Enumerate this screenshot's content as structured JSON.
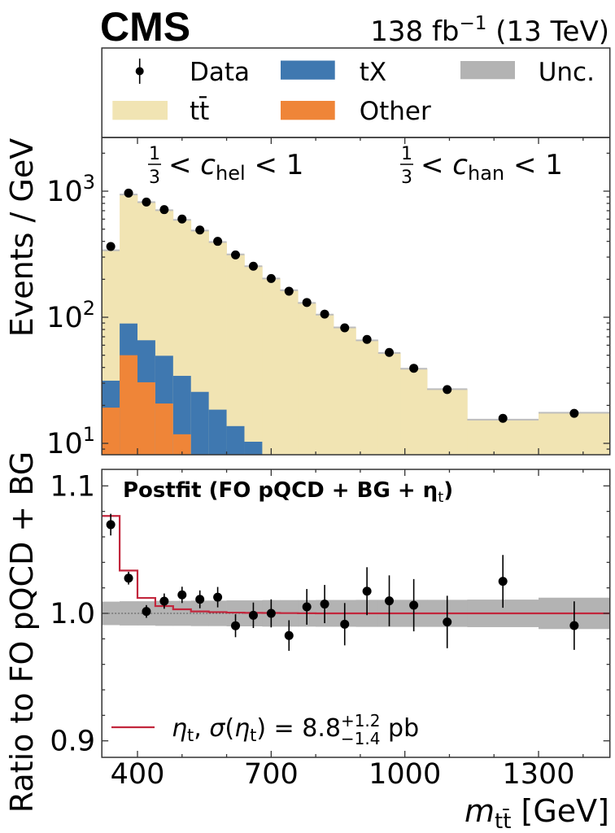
{
  "header": {
    "experiment": "CMS",
    "lumi": {
      "main": "138 fb",
      "sup": "−1",
      "tail": " (13 TeV)"
    }
  },
  "legend": {
    "data": "Data",
    "unc": "Unc."
  },
  "colors": {
    "ttbar": "#f1e4b3",
    "tX": "#3f78b0",
    "other": "#ef8538",
    "unc": "#b3b3b3",
    "postfit": "#c2263c",
    "data": "#000000",
    "step": "#bdbdbd"
  },
  "chart_data": [
    {
      "type": "bar",
      "stacked": true,
      "title": "",
      "ylabel": "Events / GeV",
      "xlim": [
        320,
        1460
      ],
      "ylim": [
        8.1,
        2760
      ],
      "grid": false,
      "annotations": [
        {
          "num": "1",
          "den": "3",
          "lt": "< ",
          "var": "c",
          "sub": "hel",
          "tail": " < 1"
        },
        {
          "num": "1",
          "den": "3",
          "lt": "< ",
          "var": "c",
          "sub": "han",
          "tail": " < 1"
        }
      ],
      "yticks": [
        {
          "value": 10,
          "base": "10",
          "exp": "1"
        },
        {
          "value": 100,
          "base": "10",
          "exp": "2"
        },
        {
          "value": 1000,
          "base": "10",
          "exp": "3"
        }
      ],
      "bin_edges": [
        320,
        360,
        400,
        440,
        480,
        520,
        560,
        600,
        640,
        680,
        720,
        760,
        800,
        840,
        890,
        940,
        990,
        1050,
        1140,
        1300,
        1460
      ],
      "series": [
        {
          "name": "Other",
          "values": [
            19.2,
            50.0,
            30.5,
            20.7,
            11.8,
            0,
            0,
            0,
            0,
            0,
            0,
            0,
            0,
            0,
            0,
            0,
            0,
            0,
            0,
            0
          ]
        },
        {
          "name": "tX",
          "values": [
            12.2,
            39.2,
            35.2,
            28.8,
            22.5,
            25.6,
            18.5,
            13.7,
            10.3,
            0,
            0,
            0,
            0,
            0,
            0,
            0,
            0,
            0,
            0,
            0
          ]
        },
        {
          "name": "tt̄",
          "values": [
            308.6,
            850.8,
            753.3,
            657.5,
            557.7,
            461.4,
            376.5,
            301.3,
            243.7,
            203,
            164,
            130,
            105,
            83.1,
            65.6,
            52.1,
            39.1,
            26.9,
            15.4,
            17.5
          ]
        }
      ],
      "data": [
        364,
        966,
        820,
        714,
        601,
        492,
        400,
        312,
        254,
        203,
        161,
        131,
        106,
        82.4,
        66.7,
        52.6,
        39.4,
        26.7,
        15.8,
        17.3
      ]
    },
    {
      "type": "line",
      "title": {
        "main": "Postfit (FO pQCD + BG + η",
        "sub": "t",
        "tail": ")"
      },
      "xlabel": {
        "var": "m",
        "sub": "tt̄",
        "unit": " [GeV]"
      },
      "ylabel": "Ratio to FO pQCD + BG",
      "xlim": [
        320,
        1460
      ],
      "ylim": [
        0.887,
        1.113
      ],
      "xticks": [
        400,
        700,
        1000,
        1300
      ],
      "xtick_labels": [
        "400",
        "700",
        "1000",
        "1300"
      ],
      "yticks": [
        0.9,
        1.0,
        1.1
      ],
      "ytick_labels": [
        "0.9",
        "1.0",
        "1.1"
      ],
      "bin_edges": [
        320,
        360,
        400,
        440,
        480,
        520,
        560,
        600,
        640,
        680,
        720,
        760,
        800,
        840,
        890,
        940,
        990,
        1050,
        1140,
        1300,
        1460
      ],
      "data_ratio": [
        1.0696,
        1.0276,
        1.0015,
        1.0096,
        1.0145,
        1.011,
        1.0127,
        0.9903,
        0.9985,
        1.0,
        0.9826,
        1.0051,
        1.0073,
        0.9915,
        1.0174,
        1.0098,
        1.0064,
        0.9932,
        1.0251,
        0.9904
      ],
      "data_ratio_err": [
        0.0085,
        0.005,
        0.005,
        0.006,
        0.0064,
        0.007,
        0.008,
        0.009,
        0.01,
        0.011,
        0.012,
        0.014,
        0.015,
        0.0166,
        0.0188,
        0.02,
        0.0205,
        0.0206,
        0.0207,
        0.019
      ],
      "postfit_ratio": [
        1.0764,
        1.0336,
        1.0121,
        1.0057,
        1.0032,
        1.0015,
        1.001,
        1.0006,
        1.0004,
        1.0003,
        1.0002,
        1.0001,
        1.0,
        1.0,
        1.0,
        1.0,
        1.0,
        1.0,
        1.0,
        1.0
      ],
      "unc_band": [
        0.0092,
        0.0095,
        0.0095,
        0.0098,
        0.0098,
        0.01,
        0.01,
        0.0102,
        0.0102,
        0.0104,
        0.0104,
        0.0104,
        0.0105,
        0.0105,
        0.0106,
        0.0106,
        0.0106,
        0.0106,
        0.0108,
        0.0123
      ],
      "legend_label": {
        "eta": "η",
        "sub1": "t",
        "sep": ", ",
        "sigma": "σ",
        "open": "(",
        "eta2": "η",
        "sub2": "t",
        "eq": ") = 8.8",
        "up": "+1.2",
        "down": "−1.4",
        "unit": " pb"
      }
    }
  ]
}
